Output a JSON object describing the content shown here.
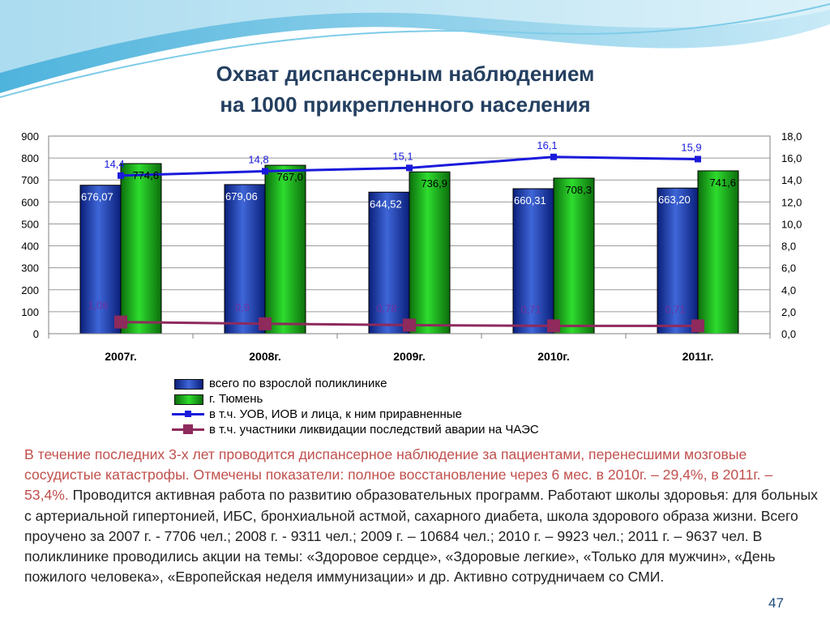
{
  "slide": {
    "title_line1": "Охват диспансерным наблюдением",
    "title_line2": "на 1000 прикрепленного населения",
    "page_number": "47",
    "text_highlight": "В течение последних 3-х лет проводится диспансерное наблюдение за пациентами, перенесшими мозговые сосудистые катастрофы. Отмечены показатели: полное восстановление через 6 мес. в 2010г. – 29,4%, в 2011г. – 53,4%.",
    "text_normal": " Проводится активная работа по развитию образовательных программ. Работают школы здоровья: для больных с артериальной гипертонией, ИБС, бронхиальной астмой, сахарного диабета, школа здорового образа жизни. Всего проучено за 2007 г. - 7706 чел.; 2008 г. - 9311 чел.; 2009 г. – 10684 чел.; 2010 г. – 9923 чел.; 2011 г. – 9637 чел. В поликлинике проводились акции на темы: «Здоровое сердце», «Здоровые легкие», «Только для мужчин», «День пожилого человека», «Европейская неделя иммунизации» и др. Активно сотрудничаем со СМИ.",
    "colors": {
      "title": "#243f60",
      "highlight_text": "#c0504d",
      "bar_blue": "#1f3fb0",
      "bar_green": "#16b016",
      "line_blue": "#1a1adc",
      "line_maroon": "#8e2a5c",
      "label_purple": "#7030a0",
      "page_number": "#1f497d"
    }
  },
  "chart_data": {
    "type": "bar",
    "categories": [
      "2007г.",
      "2008г.",
      "2009г.",
      "2010г.",
      "2011г."
    ],
    "left_axis": {
      "ylim": [
        0,
        900
      ],
      "ticks": [
        "0",
        "100",
        "200",
        "300",
        "400",
        "500",
        "600",
        "700",
        "800",
        "900"
      ]
    },
    "right_axis": {
      "ylim": [
        0,
        18
      ],
      "ticks": [
        "0,0",
        "2,0",
        "4,0",
        "6,0",
        "8,0",
        "10,0",
        "12,0",
        "14,0",
        "16,0",
        "18,0"
      ]
    },
    "grid": true,
    "legend_position": "bottom",
    "series": [
      {
        "name": "всего по взрослой поликлинике",
        "kind": "bar",
        "axis": "left",
        "values": [
          676.07,
          679.06,
          644.52,
          660.31,
          663.2
        ],
        "labels": [
          "676,07",
          "679,06",
          "644,52",
          "660,31",
          "663,20"
        ]
      },
      {
        "name": "г. Тюмень",
        "kind": "bar",
        "axis": "left",
        "values": [
          774.6,
          767.0,
          736.9,
          708.3,
          741.6
        ],
        "labels": [
          "774,6",
          "767,0",
          "736,9",
          "708,3",
          "741,6"
        ]
      },
      {
        "name": "в т.ч. УОВ, ИОВ и лица, к ним приравненные",
        "kind": "line",
        "axis": "right",
        "values": [
          14.4,
          14.8,
          15.1,
          16.1,
          15.9
        ],
        "labels": [
          "14,4",
          "14,8",
          "15,1",
          "16,1",
          "15,9"
        ]
      },
      {
        "name": "в т.ч. участники ликвидации последствий аварии на ЧАЭС",
        "kind": "line",
        "axis": "right",
        "values": [
          1.06,
          0.9,
          0.78,
          0.71,
          0.71
        ],
        "labels": [
          "1,06",
          "0,9",
          "0,78",
          "0,71",
          "0,71"
        ]
      }
    ]
  }
}
